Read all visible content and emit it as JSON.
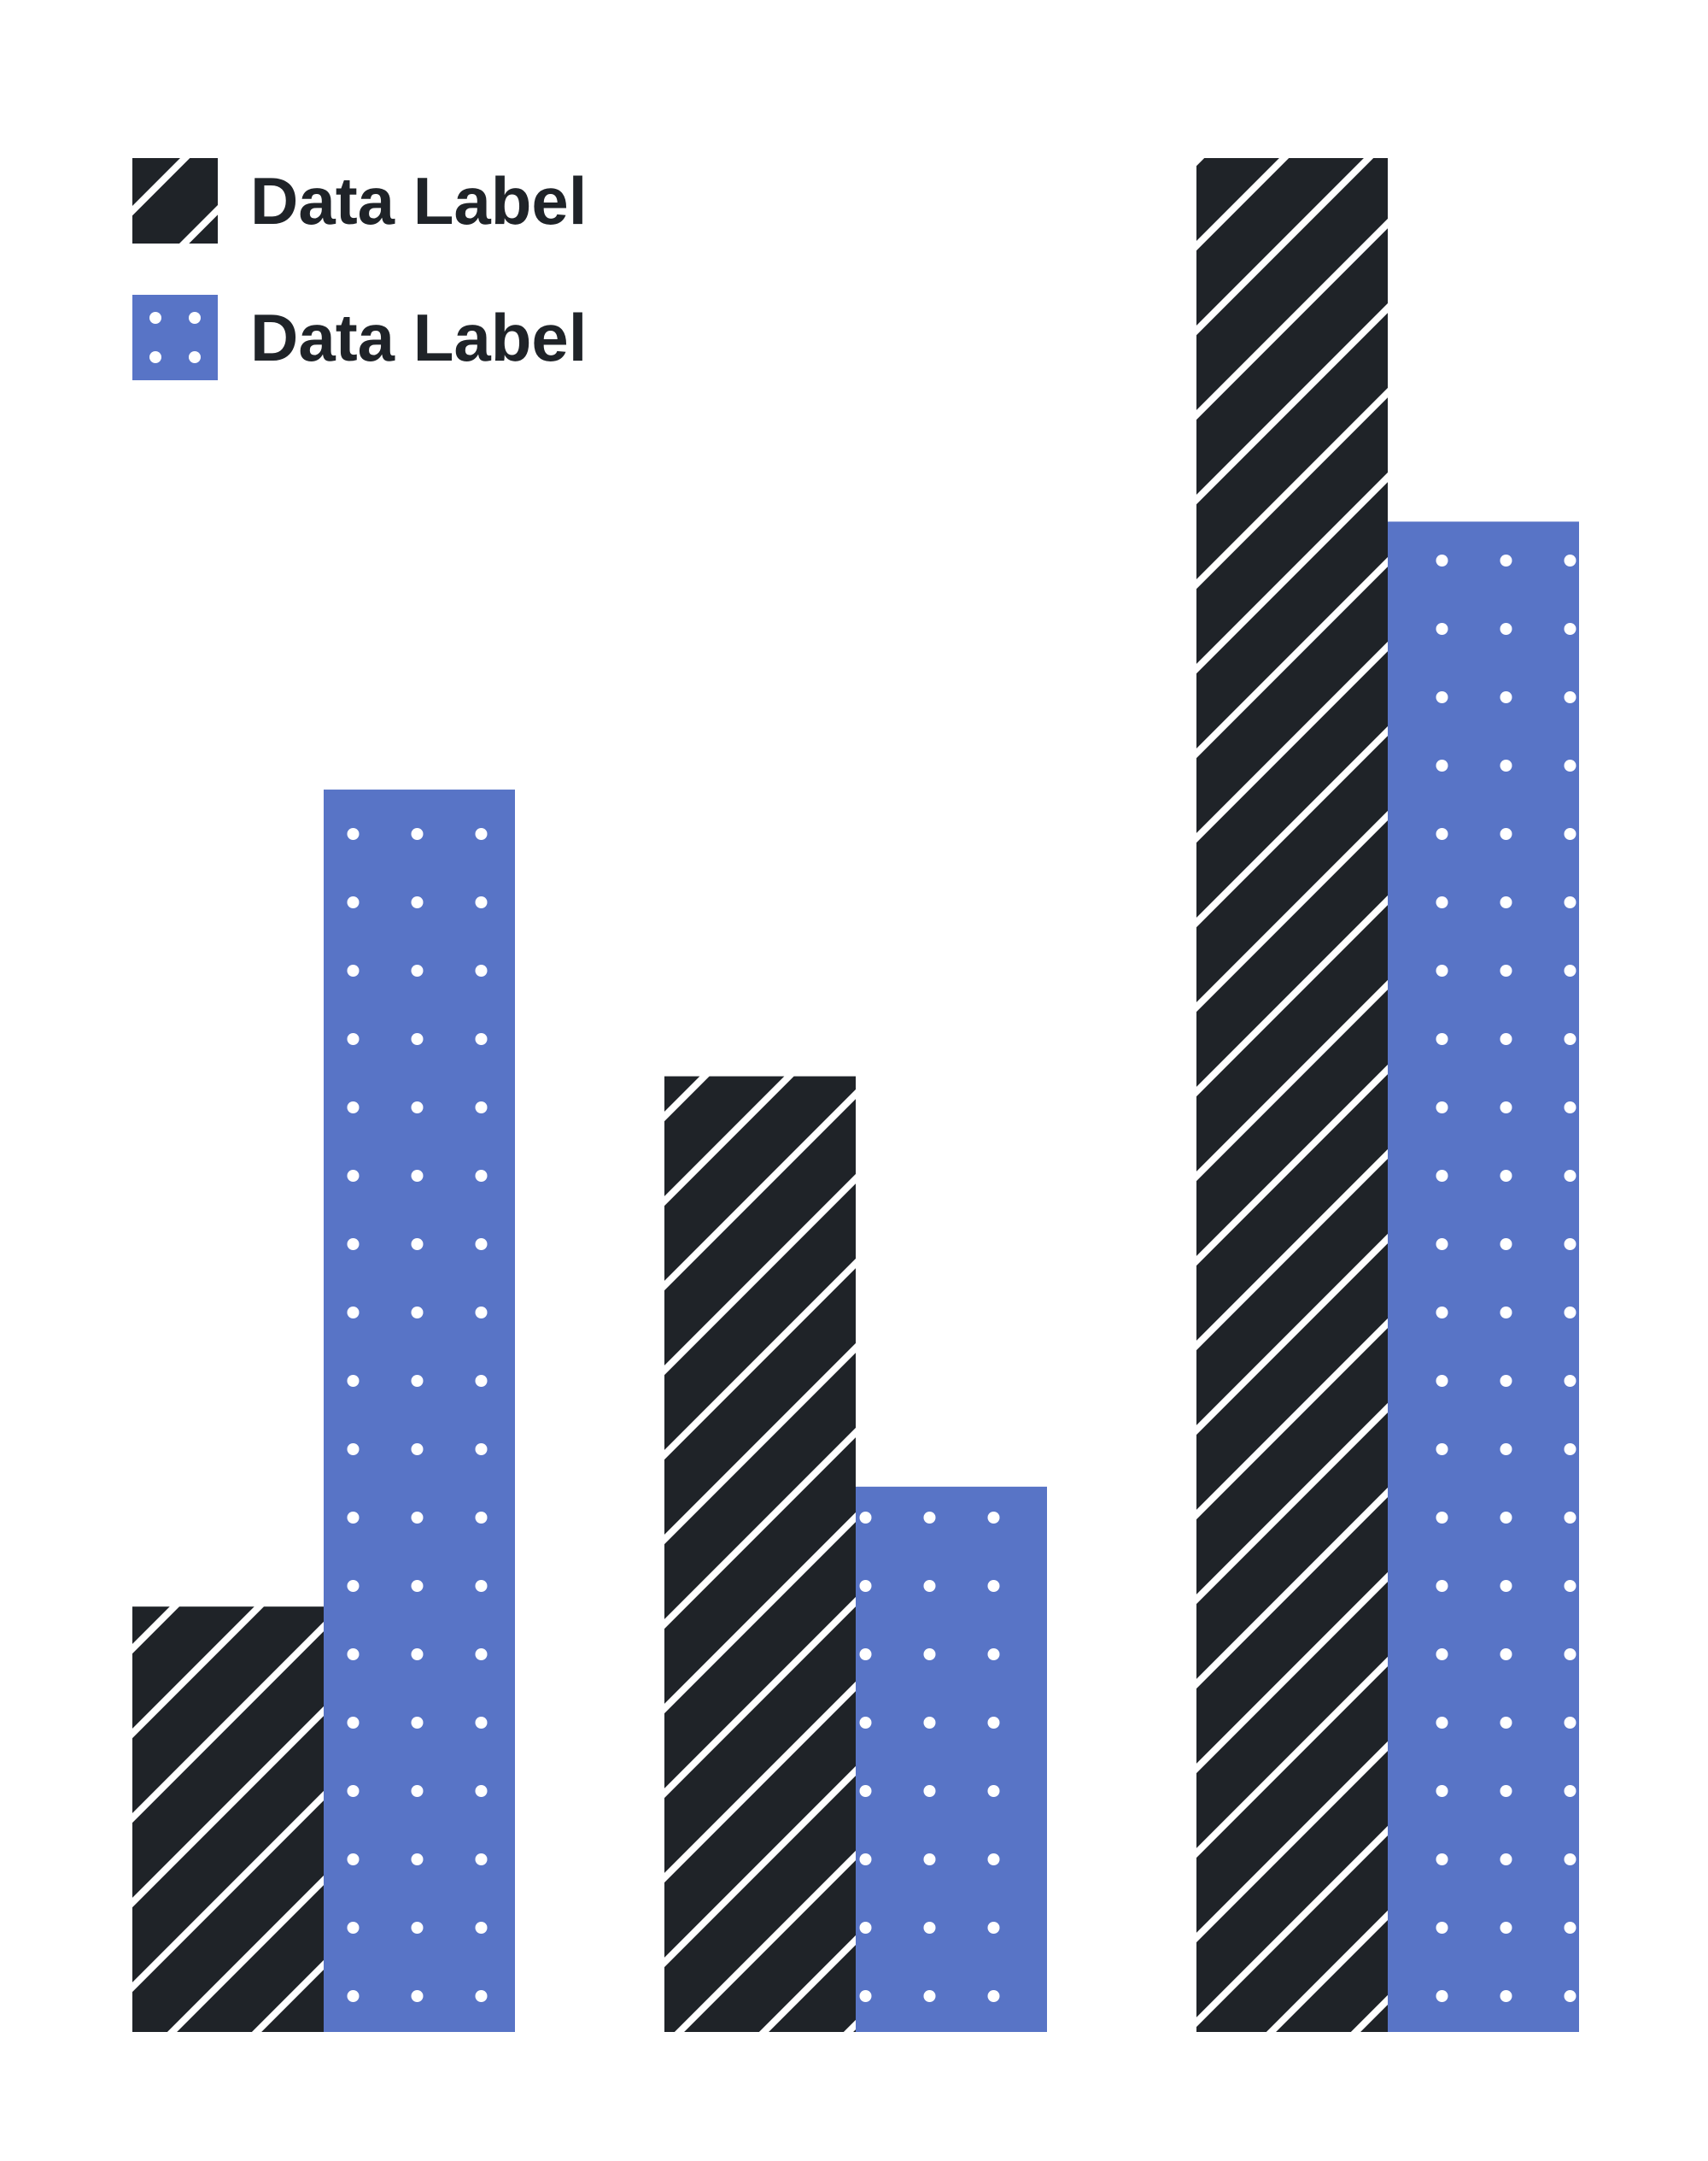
{
  "colors": {
    "background": "#ffffff",
    "series_dark": "#1f2328",
    "series_blue": "#5874c6",
    "pattern_mark": "#ffffff"
  },
  "legend": {
    "items": [
      {
        "label": "Data Label",
        "color": "#1f2328",
        "pattern": "diagonal-stripes-icon"
      },
      {
        "label": "Data Label",
        "color": "#5874c6",
        "pattern": "dots-icon"
      }
    ],
    "placement": "top-left"
  },
  "chart_data": {
    "type": "bar",
    "title": "",
    "xlabel": "",
    "ylabel": "",
    "categories": [
      "",
      "",
      ""
    ],
    "series": [
      {
        "name": "Data Label",
        "values": [
          22.7,
          51.0,
          100
        ],
        "color": "#1f2328",
        "pattern": "diagonal-stripes"
      },
      {
        "name": "Data Label",
        "values": [
          66.3,
          29.1,
          80.6
        ],
        "color": "#5874c6",
        "pattern": "dots"
      }
    ],
    "ylim": [
      0,
      100
    ],
    "grid": false,
    "axes_visible": false,
    "legend_placement": "top-left"
  }
}
